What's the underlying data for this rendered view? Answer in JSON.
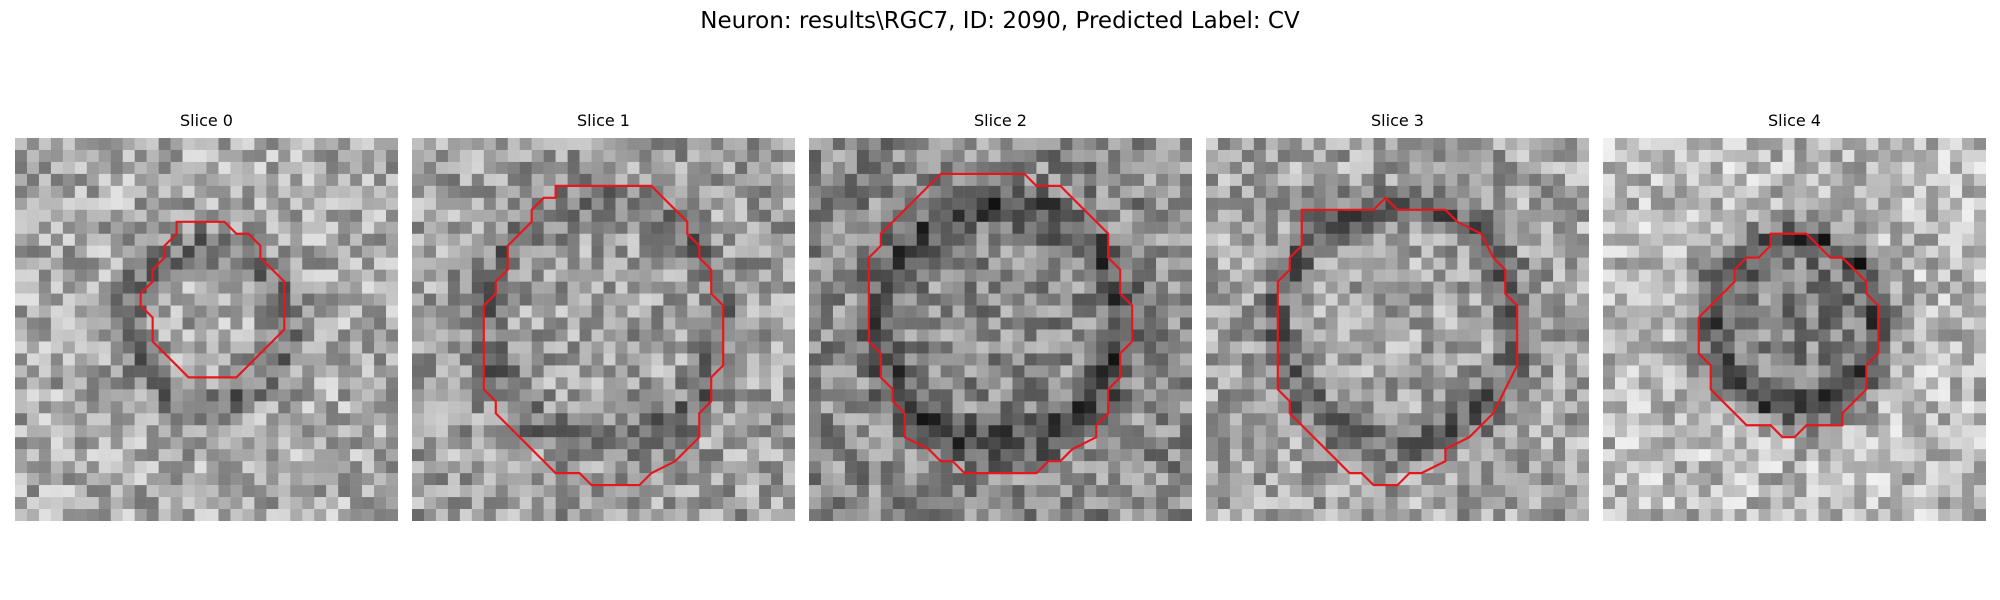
{
  "figure": {
    "title": "Neuron: results\\RGC7, ID: 2090, Predicted Label: CV"
  },
  "panels": [
    {
      "title": "Slice 0",
      "dark_ring": 0.65,
      "bg_mean": 170,
      "outline_color": "#e8161c"
    },
    {
      "title": "Slice 1",
      "dark_ring": 0.55,
      "bg_mean": 160,
      "outline_color": "#e8161c"
    },
    {
      "title": "Slice 2",
      "dark_ring": 0.75,
      "bg_mean": 140,
      "outline_color": "#e8161c"
    },
    {
      "title": "Slice 3",
      "dark_ring": 0.75,
      "bg_mean": 165,
      "outline_color": "#e8161c"
    },
    {
      "title": "Slice 4",
      "dark_ring": 0.8,
      "bg_mean": 185,
      "outline_color": "#e8161c"
    }
  ]
}
